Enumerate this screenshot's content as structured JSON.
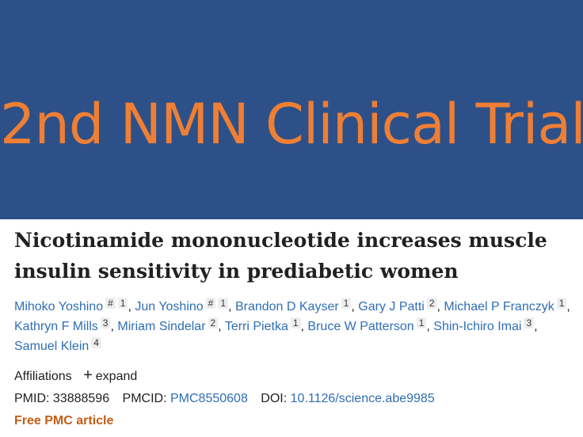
{
  "banner": {
    "title": "2nd NMN Clinical Trial",
    "bg_color": "#2d5088",
    "text_color": "#ee7f35"
  },
  "article": {
    "title": "Nicotinamide mononucleotide increases muscle insulin sensitivity in prediabetic women",
    "authors": [
      {
        "name": "Mihoko Yoshino",
        "marks": [
          "#",
          "1"
        ]
      },
      {
        "name": "Jun Yoshino",
        "marks": [
          "#",
          "1"
        ]
      },
      {
        "name": "Brandon D Kayser",
        "marks": [
          "1"
        ]
      },
      {
        "name": "Gary J Patti",
        "marks": [
          "2"
        ]
      },
      {
        "name": "Michael P Franczyk",
        "marks": [
          "1"
        ]
      },
      {
        "name": "Kathryn F Mills",
        "marks": [
          "3"
        ]
      },
      {
        "name": "Miriam Sindelar",
        "marks": [
          "2"
        ]
      },
      {
        "name": "Terri Pietka",
        "marks": [
          "1"
        ]
      },
      {
        "name": "Bruce W Patterson",
        "marks": [
          "1"
        ]
      },
      {
        "name": "Shin-Ichiro Imai",
        "marks": [
          "3"
        ]
      },
      {
        "name": "Samuel Klein",
        "marks": [
          "4"
        ]
      }
    ],
    "affiliations_label": "Affiliations",
    "expand_label": "expand",
    "pmid_label": "PMID:",
    "pmid": "33888596",
    "pmcid_label": "PMCID:",
    "pmcid": "PMC8550608",
    "doi_label": "DOI:",
    "doi": "10.1126/science.abe9985",
    "free_pmc": "Free PMC article",
    "link_color": "#2f6eb5",
    "accent_color": "#c65c16"
  }
}
